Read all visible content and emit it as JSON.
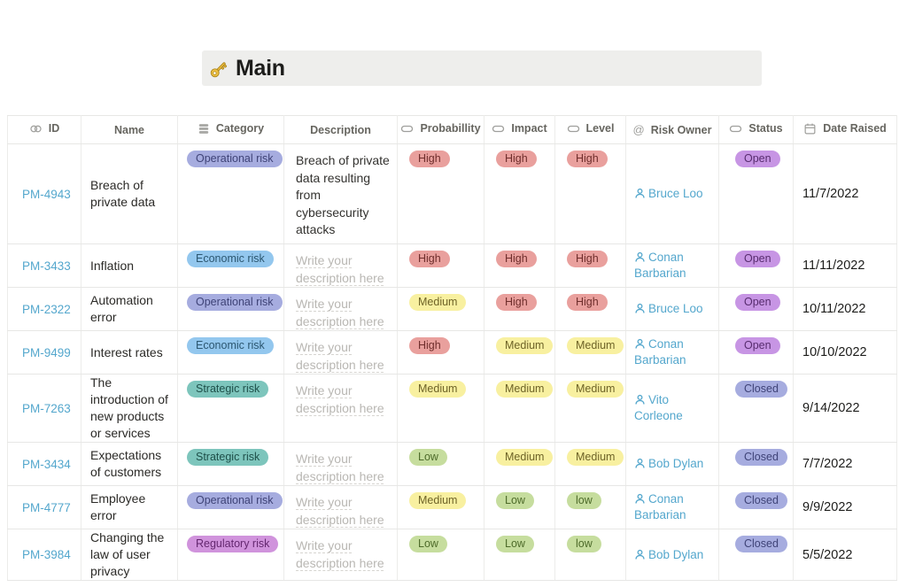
{
  "page": {
    "title": "Main",
    "title_icon": "key-icon"
  },
  "colors": {
    "link": "#54a7cd",
    "placeholder_text": "#b9b7b3",
    "title_bar_bg": "#eeeeec",
    "tags": {
      "red": {
        "bg": "#e9a09d",
        "fg": "#6f2e2c"
      },
      "yellow": {
        "bg": "#f8f0a0",
        "fg": "#6e6327"
      },
      "green": {
        "bg": "#c6dd9e",
        "fg": "#4e6b2a"
      },
      "blue": {
        "bg": "#93c7ee",
        "fg": "#2c5771"
      },
      "periwinkle": {
        "bg": "#a6acdf",
        "fg": "#3f4377"
      },
      "teal": {
        "bg": "#7dc5bc",
        "fg": "#1e4f49"
      },
      "orchid": {
        "bg": "#d093dc",
        "fg": "#64276f"
      },
      "purple": {
        "bg": "#c795e4",
        "fg": "#572c6e"
      }
    }
  },
  "table": {
    "placeholder": "Write your description here",
    "columns": [
      {
        "key": "id",
        "label": "ID",
        "icon": "link-icon"
      },
      {
        "key": "name",
        "label": "Name",
        "icon": null
      },
      {
        "key": "category",
        "label": "Category",
        "icon": "multi-select-icon"
      },
      {
        "key": "description",
        "label": "Description",
        "icon": null
      },
      {
        "key": "probability",
        "label": "Probabillity",
        "icon": "select-icon"
      },
      {
        "key": "impact",
        "label": "Impact",
        "icon": "select-icon"
      },
      {
        "key": "level",
        "label": "Level",
        "icon": "select-icon"
      },
      {
        "key": "risk_owner",
        "label": "Risk Owner",
        "icon": "at-icon"
      },
      {
        "key": "status",
        "label": "Status",
        "icon": "select-icon"
      },
      {
        "key": "date_raised",
        "label": "Date Raised",
        "icon": "calendar-icon"
      }
    ],
    "rows": [
      {
        "id": "PM-4943",
        "name": "Breach of private data",
        "category": {
          "label": "Operational risk",
          "color": "periwinkle"
        },
        "description": "Breach of private data resulting from cybersecurity attacks",
        "probability": {
          "label": "High",
          "color": "red"
        },
        "impact": {
          "label": "High",
          "color": "red"
        },
        "level": {
          "label": "High",
          "color": "red"
        },
        "risk_owner": "Bruce Loo",
        "status": {
          "label": "Open",
          "color": "purple"
        },
        "date_raised": "11/7/2022"
      },
      {
        "id": "PM-3433",
        "name": "Inflation",
        "category": {
          "label": "Economic risk",
          "color": "blue"
        },
        "description": "",
        "probability": {
          "label": "High",
          "color": "red"
        },
        "impact": {
          "label": "High",
          "color": "red"
        },
        "level": {
          "label": "High",
          "color": "red"
        },
        "risk_owner": "Conan Barbarian",
        "status": {
          "label": "Open",
          "color": "purple"
        },
        "date_raised": "11/11/2022"
      },
      {
        "id": "PM-2322",
        "name": "Automation error",
        "category": {
          "label": "Operational risk",
          "color": "periwinkle"
        },
        "description": "",
        "probability": {
          "label": "Medium",
          "color": "yellow"
        },
        "impact": {
          "label": "High",
          "color": "red"
        },
        "level": {
          "label": "High",
          "color": "red"
        },
        "risk_owner": "Bruce Loo",
        "status": {
          "label": "Open",
          "color": "purple"
        },
        "date_raised": "10/11/2022"
      },
      {
        "id": "PM-9499",
        "name": "Interest rates",
        "category": {
          "label": "Economic risk",
          "color": "blue"
        },
        "description": "",
        "probability": {
          "label": "High",
          "color": "red"
        },
        "impact": {
          "label": "Medium",
          "color": "yellow"
        },
        "level": {
          "label": "Medium",
          "color": "yellow"
        },
        "risk_owner": "Conan Barbarian",
        "status": {
          "label": "Open",
          "color": "purple"
        },
        "date_raised": "10/10/2022"
      },
      {
        "id": "PM-7263",
        "name": "The introduction of new products or services",
        "category": {
          "label": "Strategic risk",
          "color": "teal"
        },
        "description": "",
        "probability": {
          "label": "Medium",
          "color": "yellow"
        },
        "impact": {
          "label": "Medium",
          "color": "yellow"
        },
        "level": {
          "label": "Medium",
          "color": "yellow"
        },
        "risk_owner": "Vito Corleone",
        "status": {
          "label": "Closed",
          "color": "periwinkle"
        },
        "date_raised": "9/14/2022"
      },
      {
        "id": "PM-3434",
        "name": "Expectations of customers",
        "category": {
          "label": "Strategic risk",
          "color": "teal"
        },
        "description": "",
        "probability": {
          "label": "Low",
          "color": "green"
        },
        "impact": {
          "label": "Medium",
          "color": "yellow"
        },
        "level": {
          "label": "Medium",
          "color": "yellow"
        },
        "risk_owner": "Bob Dylan",
        "status": {
          "label": "Closed",
          "color": "periwinkle"
        },
        "date_raised": "7/7/2022"
      },
      {
        "id": "PM-4777",
        "name": "Employee error",
        "category": {
          "label": "Operational risk",
          "color": "periwinkle"
        },
        "description": "",
        "probability": {
          "label": "Medium",
          "color": "yellow"
        },
        "impact": {
          "label": "Low",
          "color": "green"
        },
        "level": {
          "label": "low",
          "color": "green"
        },
        "risk_owner": "Conan Barbarian",
        "status": {
          "label": "Closed",
          "color": "periwinkle"
        },
        "date_raised": "9/9/2022"
      },
      {
        "id": "PM-3984",
        "name": "Changing the law of user privacy",
        "category": {
          "label": "Regulatory risk",
          "color": "orchid"
        },
        "description": "",
        "probability": {
          "label": "Low",
          "color": "green"
        },
        "impact": {
          "label": "Low",
          "color": "green"
        },
        "level": {
          "label": "low",
          "color": "green"
        },
        "risk_owner": "Bob Dylan",
        "status": {
          "label": "Closed",
          "color": "periwinkle"
        },
        "date_raised": "5/5/2022"
      }
    ]
  }
}
